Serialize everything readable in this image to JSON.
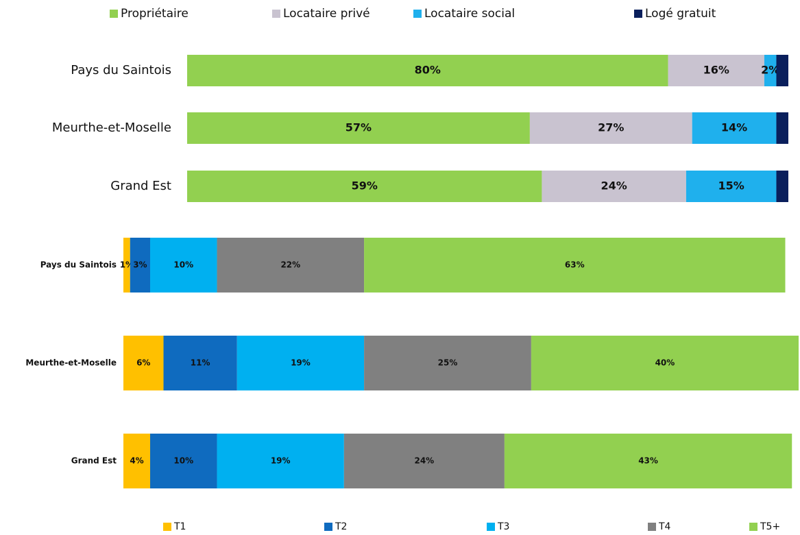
{
  "chart_data": [
    {
      "type": "stacked_barh",
      "categories": [
        "Pays du Saintois",
        "Meurthe-et-Moselle",
        "Grand Est"
      ],
      "xlim": [
        0,
        100
      ],
      "legend": "top",
      "series": [
        {
          "name": "Propriétaire",
          "color": "#92d050",
          "values": [
            80,
            57,
            59
          ],
          "value_labels": [
            "80%",
            "57%",
            "59%"
          ]
        },
        {
          "name": "Locataire privé",
          "color": "#c9c3d0",
          "values": [
            16,
            27,
            24
          ],
          "value_labels": [
            "16%",
            "27%",
            "24%"
          ]
        },
        {
          "name": "Locataire social",
          "color": "#1fb0ed",
          "values": [
            2,
            14,
            15
          ],
          "value_labels": [
            "2%",
            "14%",
            "15%"
          ]
        },
        {
          "name": "Logé gratuit",
          "color": "#0a1f5c",
          "values": [
            2,
            2,
            2
          ],
          "value_labels": [
            null,
            null,
            null
          ]
        }
      ]
    },
    {
      "type": "stacked_barh",
      "categories": [
        "Pays du Saintois",
        "Meurthe-et-Moselle",
        "Grand Est"
      ],
      "xlim": [
        0,
        101
      ],
      "legend": "bottom",
      "series": [
        {
          "name": "T1",
          "color": "#ffc000",
          "values": [
            1,
            6,
            4
          ],
          "value_labels": [
            "1%",
            "6%",
            "4%"
          ]
        },
        {
          "name": "T2",
          "color": "#0f6bbf",
          "values": [
            3,
            11,
            10
          ],
          "value_labels": [
            "3%",
            "11%",
            "10%"
          ]
        },
        {
          "name": "T3",
          "color": "#00b0f0",
          "values": [
            10,
            19,
            19
          ],
          "value_labels": [
            "10%",
            "19%",
            "19%"
          ]
        },
        {
          "name": "T4",
          "color": "#808080",
          "values": [
            22,
            25,
            24
          ],
          "value_labels": [
            "22%",
            "25%",
            "24%"
          ]
        },
        {
          "name": "T5+",
          "color": "#92d050",
          "values": [
            63,
            40,
            43
          ],
          "value_labels": [
            "63%",
            "40%",
            "43%"
          ]
        }
      ]
    }
  ]
}
